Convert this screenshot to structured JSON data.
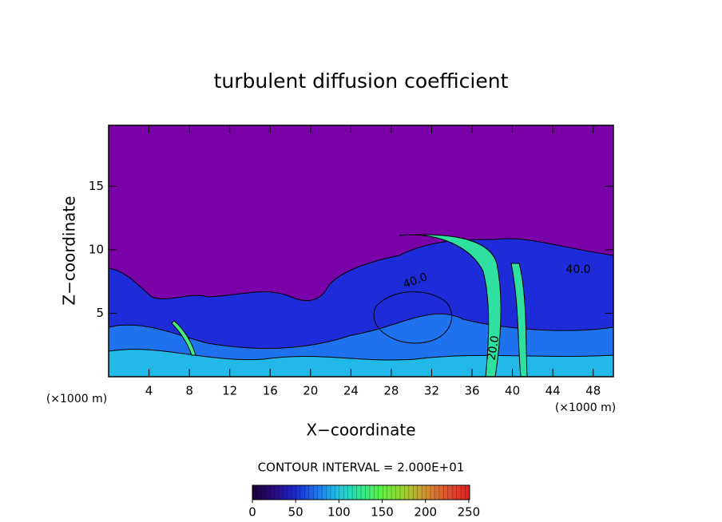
{
  "chart_data": {
    "type": "heatmap",
    "title": "turbulent diffusion coefficient",
    "xlabel": "X−coordinate",
    "ylabel": "Z−coordinate",
    "x_unit": "(×1000 m)",
    "xlim": [
      0,
      50
    ],
    "xticks": [
      4,
      8,
      12,
      16,
      20,
      24,
      28,
      32,
      36,
      40,
      44,
      48
    ],
    "ylim": [
      0,
      19.8
    ],
    "yticks": [
      5,
      10,
      15
    ],
    "contour_labels": [
      "40.0",
      "40.0",
      "20.0"
    ],
    "contour_interval": "CONTOUR INTERVAL = 2.000E+01",
    "colorbar": {
      "lim": [
        0,
        251
      ],
      "ticks": [
        0,
        50,
        100,
        150,
        200,
        250
      ],
      "colors": [
        "#1a0033",
        "#2a0a80",
        "#1a2ad0",
        "#1e78f0",
        "#20c8e0",
        "#30e890",
        "#60f040",
        "#a0d030",
        "#d09030",
        "#e05030",
        "#e02020"
      ]
    },
    "background_color": "#7a00a8"
  }
}
